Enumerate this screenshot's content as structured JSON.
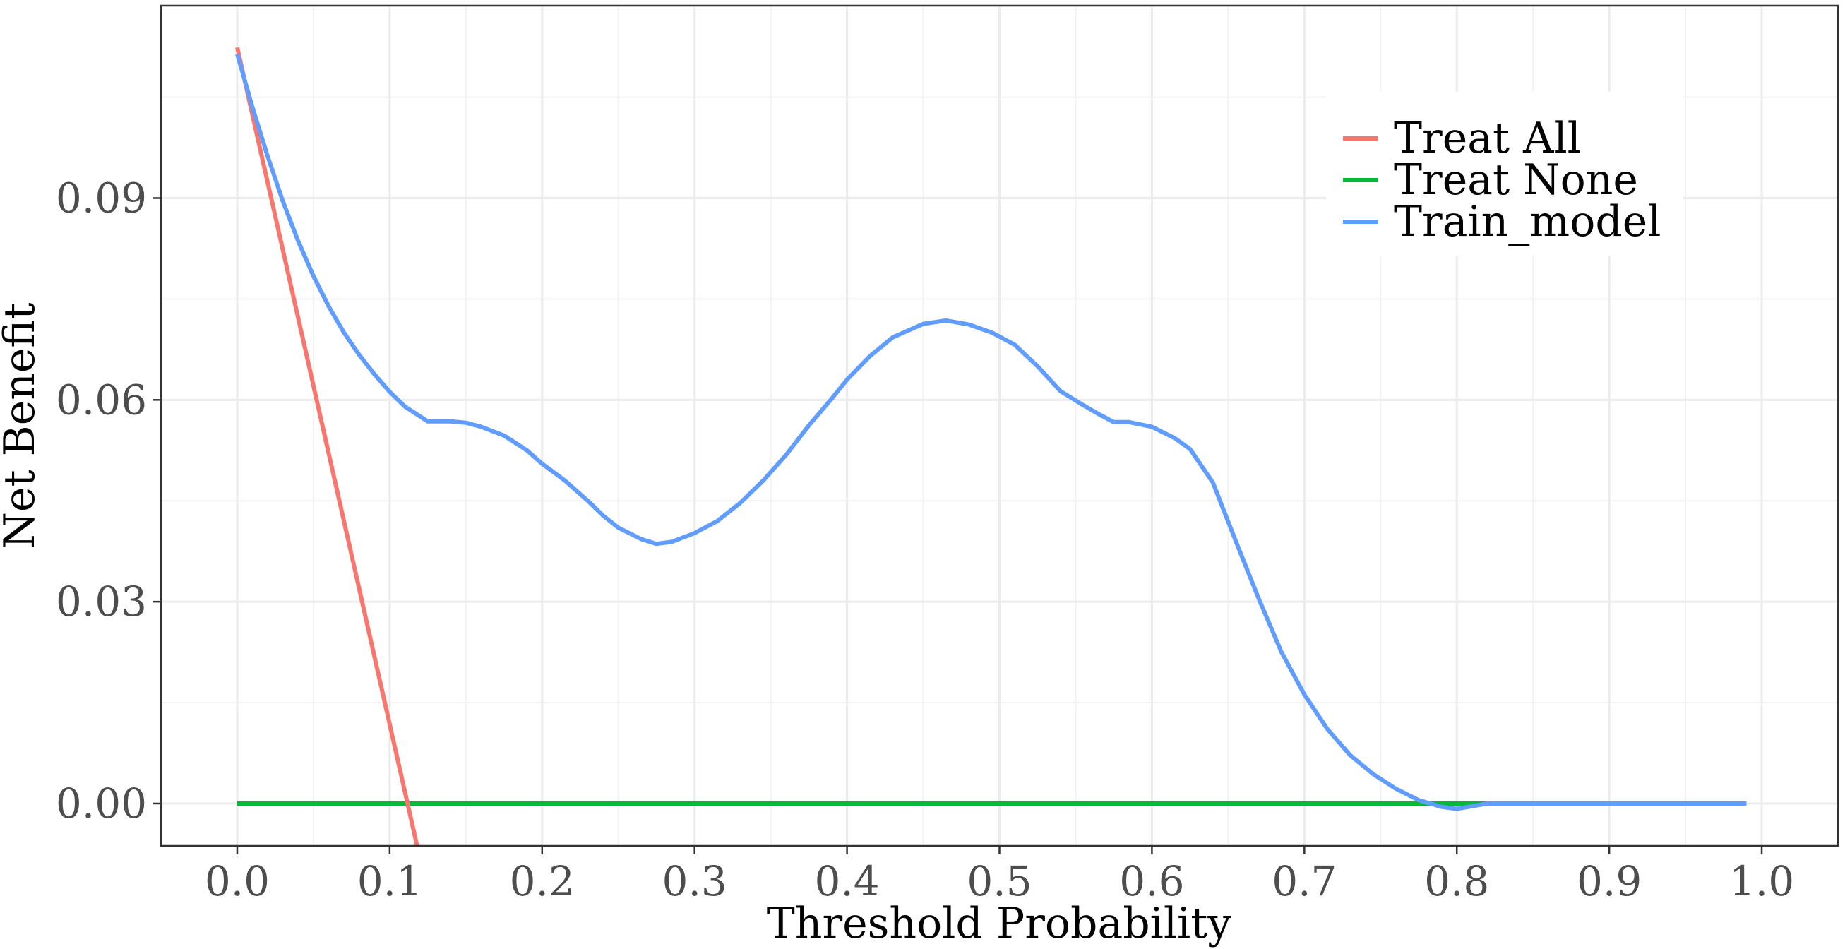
{
  "chart_data": {
    "type": "line",
    "xlabel": "Threshold Probability",
    "ylabel": "Net Benefit",
    "xlim": [
      -0.05,
      1.05
    ],
    "ylim": [
      -0.0063,
      0.1186
    ],
    "x_ticks": [
      {
        "value": 0.0,
        "label": "0.0"
      },
      {
        "value": 0.1,
        "label": "0.1"
      },
      {
        "value": 0.2,
        "label": "0.2"
      },
      {
        "value": 0.3,
        "label": "0.3"
      },
      {
        "value": 0.4,
        "label": "0.4"
      },
      {
        "value": 0.5,
        "label": "0.5"
      },
      {
        "value": 0.6,
        "label": "0.6"
      },
      {
        "value": 0.7,
        "label": "0.7"
      },
      {
        "value": 0.8,
        "label": "0.8"
      },
      {
        "value": 0.9,
        "label": "0.9"
      },
      {
        "value": 1.0,
        "label": "1.0"
      }
    ],
    "y_ticks": [
      {
        "value": 0.0,
        "label": "0.00"
      },
      {
        "value": 0.03,
        "label": "0.03"
      },
      {
        "value": 0.06,
        "label": "0.06"
      },
      {
        "value": 0.09,
        "label": "0.09"
      }
    ],
    "grid": true,
    "legend_position": "top-right",
    "series": [
      {
        "name": "Treat All",
        "color": "#F8766D",
        "x": [
          0.0,
          0.118
        ],
        "y": [
          0.1124,
          -0.0063
        ]
      },
      {
        "name": "Treat None",
        "color": "#00BA38",
        "x": [
          0.0,
          0.99
        ],
        "y": [
          0.0,
          0.0
        ]
      },
      {
        "name": "Train_model",
        "color": "#619CFF",
        "x": [
          0.0,
          0.01,
          0.02,
          0.03,
          0.04,
          0.05,
          0.06,
          0.07,
          0.08,
          0.09,
          0.1,
          0.11,
          0.125,
          0.14,
          0.15,
          0.16,
          0.175,
          0.19,
          0.2,
          0.215,
          0.23,
          0.24,
          0.25,
          0.265,
          0.275,
          0.285,
          0.3,
          0.315,
          0.33,
          0.345,
          0.36,
          0.375,
          0.39,
          0.4,
          0.415,
          0.43,
          0.45,
          0.465,
          0.48,
          0.495,
          0.51,
          0.525,
          0.54,
          0.555,
          0.565,
          0.575,
          0.585,
          0.6,
          0.615,
          0.625,
          0.64,
          0.655,
          0.67,
          0.685,
          0.7,
          0.715,
          0.73,
          0.745,
          0.76,
          0.775,
          0.79,
          0.8,
          0.82,
          0.85,
          0.9,
          0.95,
          0.99
        ],
        "y": [
          0.1114,
          0.1035,
          0.0962,
          0.0895,
          0.0836,
          0.0784,
          0.0739,
          0.07,
          0.0667,
          0.0638,
          0.0612,
          0.059,
          0.0568,
          0.0568,
          0.0566,
          0.056,
          0.0547,
          0.0525,
          0.0505,
          0.048,
          0.045,
          0.0428,
          0.041,
          0.0393,
          0.0386,
          0.0389,
          0.0402,
          0.042,
          0.0447,
          0.048,
          0.0518,
          0.0562,
          0.0602,
          0.063,
          0.0665,
          0.0693,
          0.0713,
          0.0718,
          0.0712,
          0.07,
          0.0682,
          0.065,
          0.0613,
          0.0592,
          0.0579,
          0.0567,
          0.0567,
          0.056,
          0.0543,
          0.0527,
          0.0477,
          0.039,
          0.0305,
          0.0225,
          0.0162,
          0.0111,
          0.0072,
          0.0044,
          0.0022,
          0.0005,
          -0.0005,
          -0.0008,
          0.0,
          0.0,
          0.0,
          0.0,
          0.0
        ]
      }
    ]
  }
}
